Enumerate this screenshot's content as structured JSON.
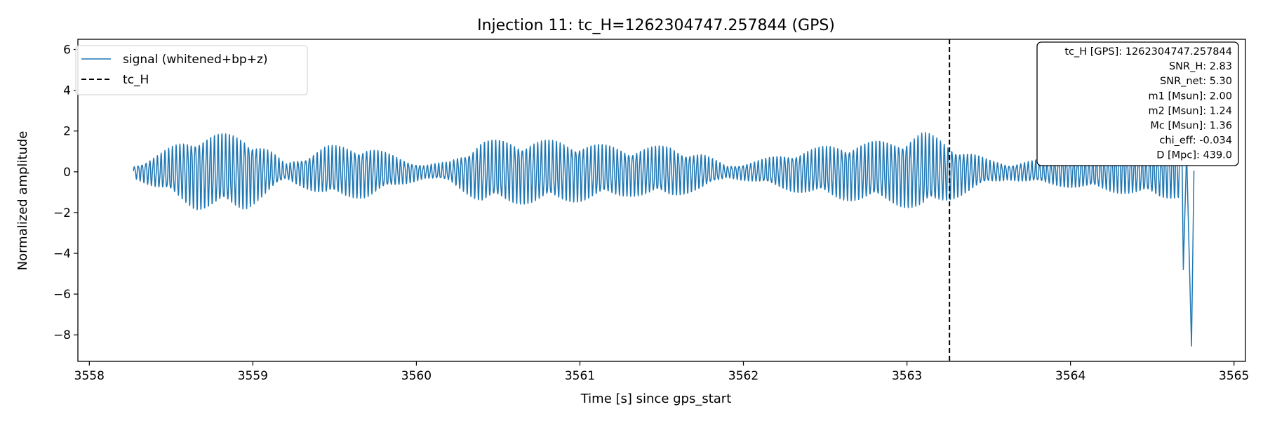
{
  "chart_data": {
    "type": "line",
    "title": "Injection 11: tc_H=1262304747.257844 (GPS)",
    "xlabel": "Time [s] since gps_start",
    "ylabel": "Normalized amplitude",
    "xlim": [
      3557.93,
      3565.07
    ],
    "ylim": [
      -9.3,
      6.5
    ],
    "x_ticks": [
      3558,
      3559,
      3560,
      3561,
      3562,
      3563,
      3564,
      3565
    ],
    "y_ticks": [
      -8,
      -6,
      -4,
      -2,
      0,
      2,
      4,
      6
    ],
    "x_tick_labels": [
      "3558",
      "3559",
      "3560",
      "3561",
      "3562",
      "3563",
      "3564",
      "3565"
    ],
    "y_tick_labels": [
      "−8",
      "−6",
      "−4",
      "−2",
      "0",
      "2",
      "4",
      "6"
    ],
    "grid": false,
    "legend": {
      "placement": "upper-left",
      "entries": [
        {
          "label": "signal (whitened+bp+z)",
          "style": "solid",
          "color": "#1f77b4"
        },
        {
          "label": "tc_H",
          "style": "dashed",
          "color": "#000000"
        }
      ]
    },
    "series": [
      {
        "name": "signal (whitened+bp+z)",
        "color": "#1f77b4",
        "x_start": 3558.27,
        "x_end": 3564.75,
        "envelope": {
          "x": [
            3558.27,
            3558.45,
            3558.65,
            3558.95,
            3559.1,
            3559.2,
            3559.45,
            3559.7,
            3559.9,
            3560.05,
            3560.2,
            3560.4,
            3560.7,
            3561.0,
            3561.3,
            3561.55,
            3561.75,
            3561.9,
            3562.05,
            3562.3,
            3562.6,
            3562.9,
            3563.1,
            3563.3,
            3563.5,
            3563.62,
            3563.8,
            3564.1,
            3564.35,
            3564.55,
            3564.65
          ],
          "amplitude": [
            0.3,
            1.0,
            1.9,
            1.9,
            1.1,
            0.4,
            1.3,
            1.3,
            0.7,
            0.35,
            0.5,
            1.6,
            1.6,
            1.5,
            1.2,
            1.3,
            0.9,
            0.3,
            0.5,
            1.0,
            1.4,
            1.6,
            2.0,
            1.3,
            0.6,
            0.4,
            0.6,
            0.9,
            1.1,
            1.4,
            1.3
          ]
        },
        "cycles_per_second": 43,
        "end_spikes": [
          {
            "x": 3564.69,
            "y": -4.8
          },
          {
            "x": 3564.74,
            "y": -8.55
          },
          {
            "x": 3564.755,
            "y": 0.05
          }
        ]
      }
    ],
    "vlines": [
      {
        "name": "tc_H",
        "x": 3563.26,
        "style": "dashed",
        "color": "#000000"
      }
    ],
    "info_box": {
      "placement": "upper-right",
      "lines": [
        "tc_H [GPS]: 1262304747.257844",
        "SNR_H: 2.83",
        "SNR_net: 5.30",
        "m1 [Msun]: 2.00",
        "m2 [Msun]: 1.24",
        "Mc [Msun]: 1.36",
        "chi_eff: -0.034",
        "D [Mpc]: 439.0"
      ]
    }
  }
}
